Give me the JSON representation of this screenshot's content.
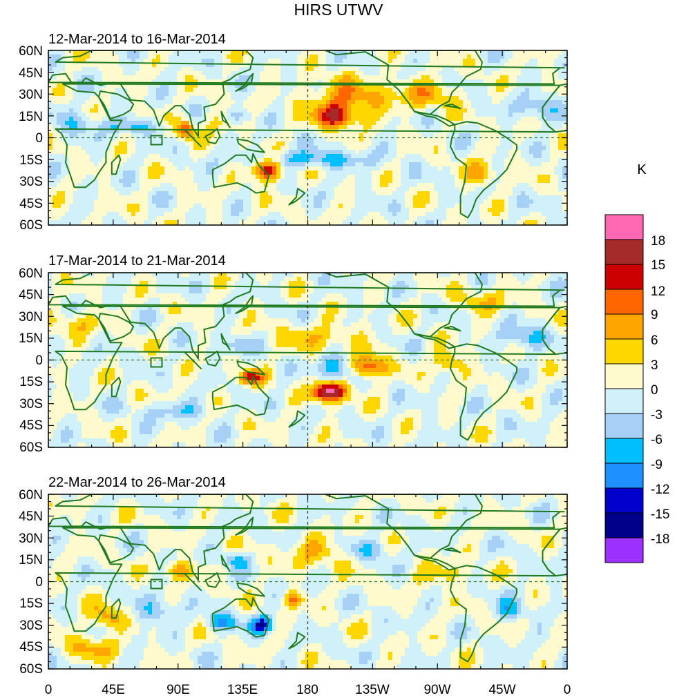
{
  "title": "HIRS UTWV",
  "units": "K",
  "panels": [
    {
      "date_range": "12-Mar-2014 to 16-Mar-2014",
      "features": [
        {
          "lon": 200,
          "lat": 15,
          "amp": 14,
          "rlon": 14,
          "rlat": 8
        },
        {
          "lon": 152,
          "lat": -22,
          "amp": 16,
          "rlon": 10,
          "rlat": 8
        },
        {
          "lon": 95,
          "lat": 6,
          "amp": 14,
          "rlon": 6,
          "rlat": 6
        },
        {
          "lon": 210,
          "lat": 28,
          "amp": 8,
          "rlon": 30,
          "rlat": 12
        },
        {
          "lon": 120,
          "lat": 12,
          "amp": 5,
          "rlon": 12,
          "rlat": 8
        },
        {
          "lon": 300,
          "lat": -25,
          "amp": 8,
          "rlon": 10,
          "rlat": 8
        },
        {
          "lon": 180,
          "lat": -15,
          "amp": -8,
          "rlon": 40,
          "rlat": 6
        },
        {
          "lon": 60,
          "lat": 8,
          "amp": -7,
          "rlon": 20,
          "rlat": 5
        },
        {
          "lon": 130,
          "lat": 15,
          "amp": -7,
          "rlon": 10,
          "rlat": 5
        },
        {
          "lon": 20,
          "lat": 10,
          "amp": -5,
          "rlon": 12,
          "rlat": 10
        },
        {
          "lon": 265,
          "lat": 30,
          "amp": 6,
          "rlon": 20,
          "rlat": 10
        },
        {
          "lon": 340,
          "lat": 20,
          "amp": -6,
          "rlon": 15,
          "rlat": 8
        }
      ]
    },
    {
      "date_range": "17-Mar-2014 to 21-Mar-2014",
      "features": [
        {
          "lon": 195,
          "lat": -22,
          "amp": 20,
          "rlon": 12,
          "rlat": 7
        },
        {
          "lon": 140,
          "lat": -12,
          "amp": 13,
          "rlon": 8,
          "rlat": 5
        },
        {
          "lon": 222,
          "lat": -5,
          "amp": 13,
          "rlon": 12,
          "rlat": 8
        },
        {
          "lon": 278,
          "lat": -2,
          "amp": 8,
          "rlon": 10,
          "rlat": 8
        },
        {
          "lon": 190,
          "lat": 15,
          "amp": 5,
          "rlon": 30,
          "rlat": 10
        },
        {
          "lon": 200,
          "lat": -5,
          "amp": -9,
          "rlon": 12,
          "rlat": 10
        },
        {
          "lon": 130,
          "lat": 10,
          "amp": -6,
          "rlon": 10,
          "rlat": 6
        },
        {
          "lon": 330,
          "lat": 15,
          "amp": -7,
          "rlon": 15,
          "rlat": 8
        },
        {
          "lon": 90,
          "lat": -35,
          "amp": -5,
          "rlon": 25,
          "rlat": 6
        },
        {
          "lon": 20,
          "lat": 25,
          "amp": 5,
          "rlon": 15,
          "rlat": 8
        },
        {
          "lon": 300,
          "lat": 40,
          "amp": 5,
          "rlon": 20,
          "rlat": 8
        }
      ]
    },
    {
      "date_range": "22-Mar-2014 to 26-Mar-2014",
      "features": [
        {
          "lon": 148,
          "lat": -30,
          "amp": -14,
          "rlon": 8,
          "rlat": 6
        },
        {
          "lon": 120,
          "lat": -28,
          "amp": -9,
          "rlon": 10,
          "rlat": 6
        },
        {
          "lon": 170,
          "lat": -12,
          "amp": 11,
          "rlon": 6,
          "rlat": 5
        },
        {
          "lon": 40,
          "lat": -25,
          "amp": 8,
          "rlon": 12,
          "rlat": 8
        },
        {
          "lon": 190,
          "lat": 20,
          "amp": 6,
          "rlon": 25,
          "rlat": 10
        },
        {
          "lon": 220,
          "lat": 22,
          "amp": -6,
          "rlon": 20,
          "rlat": 7
        },
        {
          "lon": 75,
          "lat": -20,
          "amp": -6,
          "rlon": 15,
          "rlat": 8
        },
        {
          "lon": 130,
          "lat": 15,
          "amp": -7,
          "rlon": 10,
          "rlat": 5
        },
        {
          "lon": 90,
          "lat": 8,
          "amp": 8,
          "rlon": 10,
          "rlat": 6
        },
        {
          "lon": 30,
          "lat": -45,
          "amp": 6,
          "rlon": 20,
          "rlat": 8
        },
        {
          "lon": 320,
          "lat": -20,
          "amp": -6,
          "rlon": 12,
          "rlat": 8
        },
        {
          "lon": 275,
          "lat": 5,
          "amp": 5,
          "rlon": 20,
          "rlat": 8
        }
      ]
    }
  ],
  "y_ticks": [
    "60N",
    "45N",
    "30N",
    "15N",
    "0",
    "15S",
    "30S",
    "45S",
    "60S"
  ],
  "y_tick_lats": [
    60,
    45,
    30,
    15,
    0,
    -15,
    -30,
    -45,
    -60
  ],
  "x_ticks": [
    "0",
    "45E",
    "90E",
    "135E",
    "180",
    "135W",
    "90W",
    "45W",
    "0"
  ],
  "x_tick_lons": [
    0,
    45,
    90,
    135,
    180,
    225,
    270,
    315,
    360
  ],
  "colorbar": {
    "levels": [
      "18",
      "15",
      "12",
      "9",
      "6",
      "3",
      "0",
      "-3",
      "-6",
      "-9",
      "-12",
      "-15",
      "-18"
    ],
    "colors": [
      "#ff69b4",
      "#a52a2a",
      "#cd0000",
      "#ff6600",
      "#ffa500",
      "#ffd700",
      "#fffacd",
      "#d0f0fa",
      "#a6d0f5",
      "#00bfff",
      "#1e90ff",
      "#0000cd",
      "#00008b",
      "#9b30ff"
    ]
  },
  "coast_color": "#1f7a1f",
  "guide_color": "#2e7d32"
}
